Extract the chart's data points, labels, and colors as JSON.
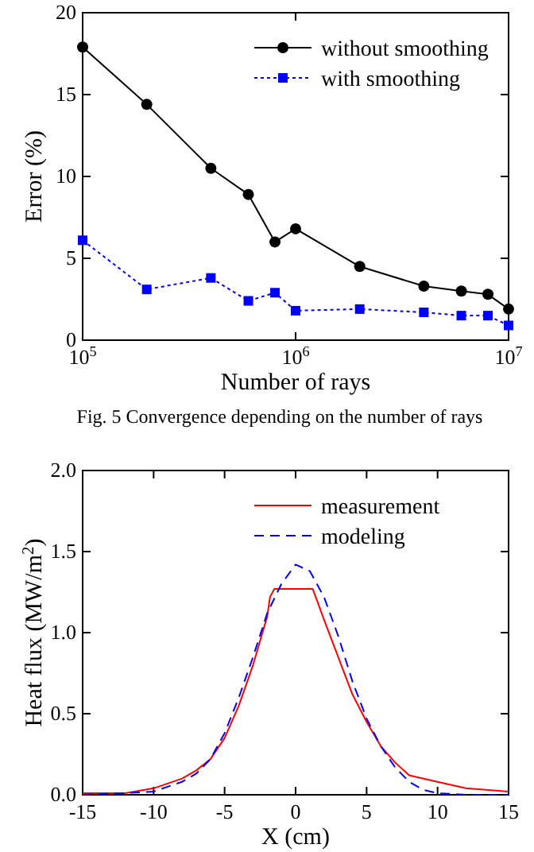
{
  "chart_data": [
    {
      "type": "line",
      "xlabel": "Number of rays",
      "ylabel": "Error (%)",
      "log": "x",
      "xlim": [
        100000,
        10000000
      ],
      "xticks": [
        {
          "value": 100000,
          "label": "10$^{5}$"
        },
        {
          "value": 1000000,
          "label": "10$^{6}$"
        },
        {
          "value": 10000000,
          "label": "10$^{7}$"
        }
      ],
      "ylim": [
        0,
        20
      ],
      "yticks": [
        0,
        5,
        10,
        15,
        20
      ],
      "grid": false,
      "legend": "top right",
      "x": [
        100000,
        200000,
        400000,
        600000,
        800000,
        1000000,
        2000000,
        4000000,
        6000000,
        8000000,
        10000000
      ],
      "series": [
        {
          "name": "without smoothing",
          "color": "#000000",
          "marker": "circle",
          "line_style": "solid",
          "values": [
            17.9,
            14.4,
            10.5,
            8.9,
            6.0,
            6.8,
            4.5,
            3.3,
            3.0,
            2.8,
            1.9
          ]
        },
        {
          "name": "with smoothing",
          "color": "#0000ff",
          "marker": "square",
          "line_style": "dotted",
          "values": [
            6.1,
            3.1,
            3.8,
            2.4,
            2.9,
            1.8,
            1.9,
            1.7,
            1.5,
            1.5,
            0.9
          ]
        }
      ],
      "annotations": [
        "Fig. 5 Convergence depending on the number of rays"
      ]
    },
    {
      "type": "line",
      "xlabel": "X (cm)",
      "ylabel": "Heat flux (MW/m$^{2}$)",
      "xlim": [
        -15,
        15
      ],
      "xticks": [
        -15,
        -10,
        -5,
        0,
        5,
        10,
        15
      ],
      "ylim": [
        0,
        2
      ],
      "yticks": [
        {
          "value": 0,
          "label": "0.0"
        },
        {
          "value": 0.5,
          "label": "0.5"
        },
        {
          "value": 1,
          "label": "1.0"
        },
        {
          "value": 1.5,
          "label": "1.5"
        },
        {
          "value": 2,
          "label": "2.0"
        }
      ],
      "grid": false,
      "legend": "top right",
      "series": [
        {
          "name": "measurement",
          "color": "#ff0000",
          "line_style": "solid",
          "x": [
            -15,
            -12,
            -10,
            -8,
            -7,
            -6,
            -5,
            -4,
            -3,
            -2,
            -1.8,
            -1.5,
            1.2,
            1.5,
            2,
            3,
            4,
            5,
            6,
            7,
            8,
            10,
            12,
            15
          ],
          "values": [
            0.01,
            0.01,
            0.04,
            0.1,
            0.15,
            0.22,
            0.35,
            0.55,
            0.8,
            1.1,
            1.22,
            1.27,
            1.27,
            1.2,
            1.08,
            0.85,
            0.62,
            0.45,
            0.3,
            0.2,
            0.12,
            0.08,
            0.04,
            0.02
          ]
        },
        {
          "name": "modeling",
          "color": "#0000ff",
          "line_style": "dashed",
          "x": [
            -15,
            -12,
            -10,
            -8,
            -7,
            -6,
            -5,
            -4,
            -3,
            -2,
            -1,
            0,
            1,
            2,
            3,
            4,
            5,
            6,
            7,
            8,
            9,
            10,
            12,
            15
          ],
          "values": [
            0,
            0.01,
            0.02,
            0.08,
            0.13,
            0.22,
            0.38,
            0.6,
            0.85,
            1.12,
            1.3,
            1.42,
            1.38,
            1.22,
            0.98,
            0.7,
            0.47,
            0.3,
            0.17,
            0.08,
            0.03,
            0.01,
            0,
            0
          ]
        }
      ]
    }
  ]
}
